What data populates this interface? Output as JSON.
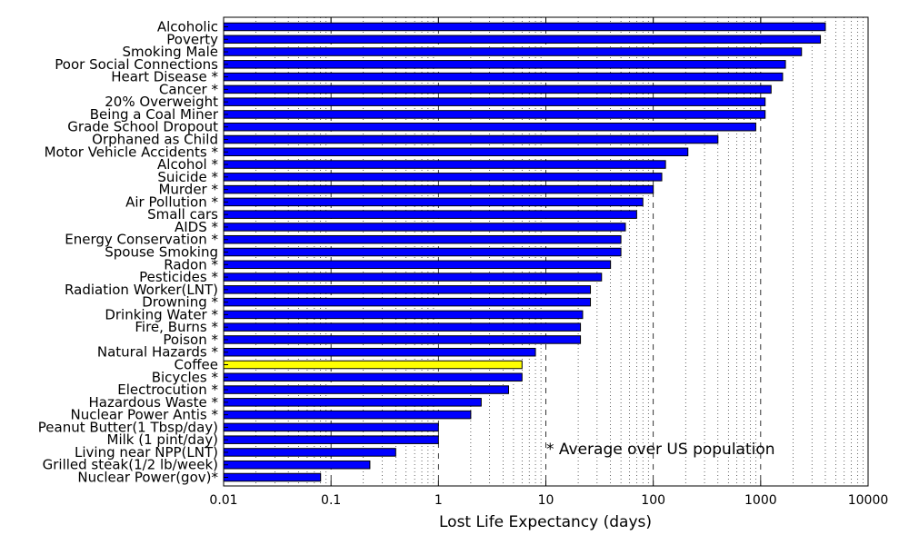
{
  "chart_data": {
    "type": "bar",
    "orientation": "horizontal",
    "xscale": "log",
    "xlim": [
      0.01,
      10000
    ],
    "xticks": [
      "0.01",
      "0.1",
      "1",
      "10",
      "100",
      "1000",
      "10000"
    ],
    "xlabel": "Lost Life Expectancy (days)",
    "annotation": "* Average over US population",
    "grid": "vertical dotted minor, dashed major",
    "bar_color": "#0000ff",
    "highlight_color": "#ffff00",
    "categories": [
      "Alcoholic",
      "Poverty",
      "Smoking Male",
      "Poor Social Connections",
      "Heart Disease *",
      "Cancer *",
      "20% Overweight",
      "Being a Coal Miner",
      "Grade School Dropout",
      "Orphaned as Child",
      "Motor Vehicle Accidents *",
      "Alcohol *",
      "Suicide *",
      "Murder *",
      "Air Pollution *",
      "Small cars",
      "AIDS *",
      "Energy Conservation *",
      "Spouse Smoking",
      "Radon *",
      "Pesticides *",
      "Radiation Worker(LNT)",
      "Drowning *",
      "Drinking Water *",
      "Fire, Burns *",
      "Poison *",
      "Natural Hazards *",
      "Coffee",
      "Bicycles *",
      "Electrocution *",
      "Hazardous Waste *",
      "Nuclear Power Antis *",
      "Peanut Butter(1 Tbsp/day)",
      "Milk (1 pint/day)",
      "Living near NPP(LNT)",
      "Grilled steak(1/2 lb/week)",
      "Nuclear Power(gov)*"
    ],
    "values": [
      4000,
      3600,
      2400,
      1700,
      1600,
      1250,
      1100,
      1100,
      900,
      400,
      210,
      130,
      120,
      100,
      80,
      70,
      55,
      50,
      50,
      40,
      33,
      26,
      26,
      22,
      21,
      21,
      8,
      6,
      6,
      4.5,
      2.5,
      2,
      1,
      1,
      0.4,
      0.23,
      0.08
    ],
    "highlight": [
      "Coffee"
    ]
  }
}
